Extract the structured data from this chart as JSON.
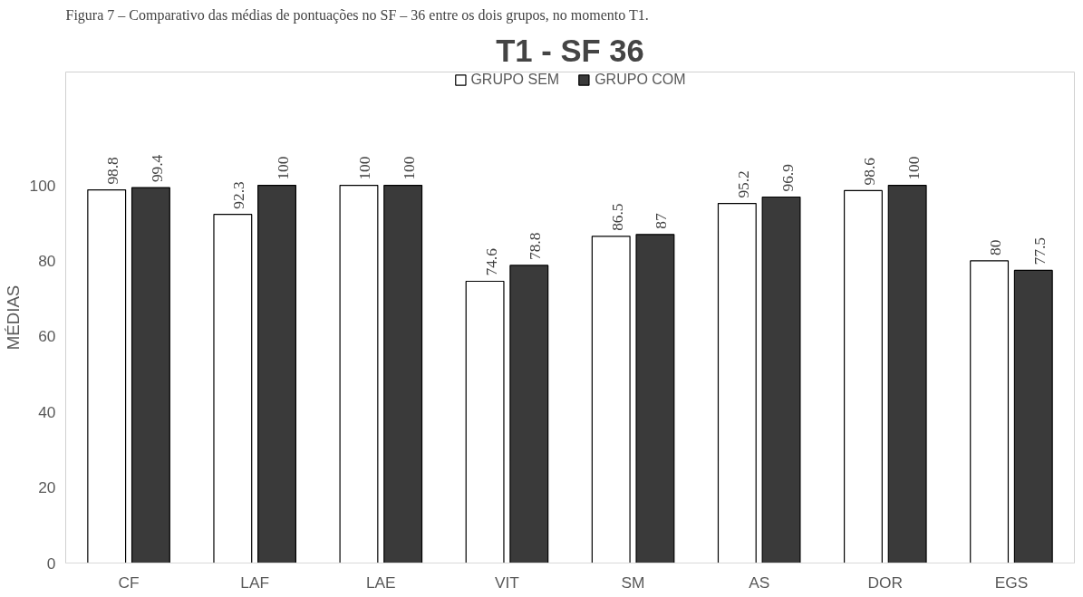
{
  "chart_data": {
    "type": "bar",
    "title": "T1 - SF 36",
    "ylabel": "MÉDIAS",
    "annotations": [
      "Figura 7 – Comparativo das médias de pontuações no SF – 36 entre os dois grupos, no momento T1."
    ],
    "categories": [
      "CF",
      "LAF",
      "LAE",
      "VIT",
      "SM",
      "AS",
      "DOR",
      "EGS"
    ],
    "series": [
      {
        "name": "GRUPO SEM",
        "color": "#ffffff",
        "values": [
          98.8,
          92.3,
          100,
          74.6,
          86.5,
          95.2,
          98.6,
          80
        ]
      },
      {
        "name": "GRUPO COM",
        "color": "#3a3a3a",
        "values": [
          99.4,
          100,
          100,
          78.8,
          87,
          96.9,
          100,
          77.5
        ]
      }
    ],
    "ylim": [
      0,
      130
    ],
    "yticks": [
      0,
      20,
      40,
      60,
      80,
      100
    ],
    "grid": false,
    "legend": "top",
    "data_labels": true
  }
}
